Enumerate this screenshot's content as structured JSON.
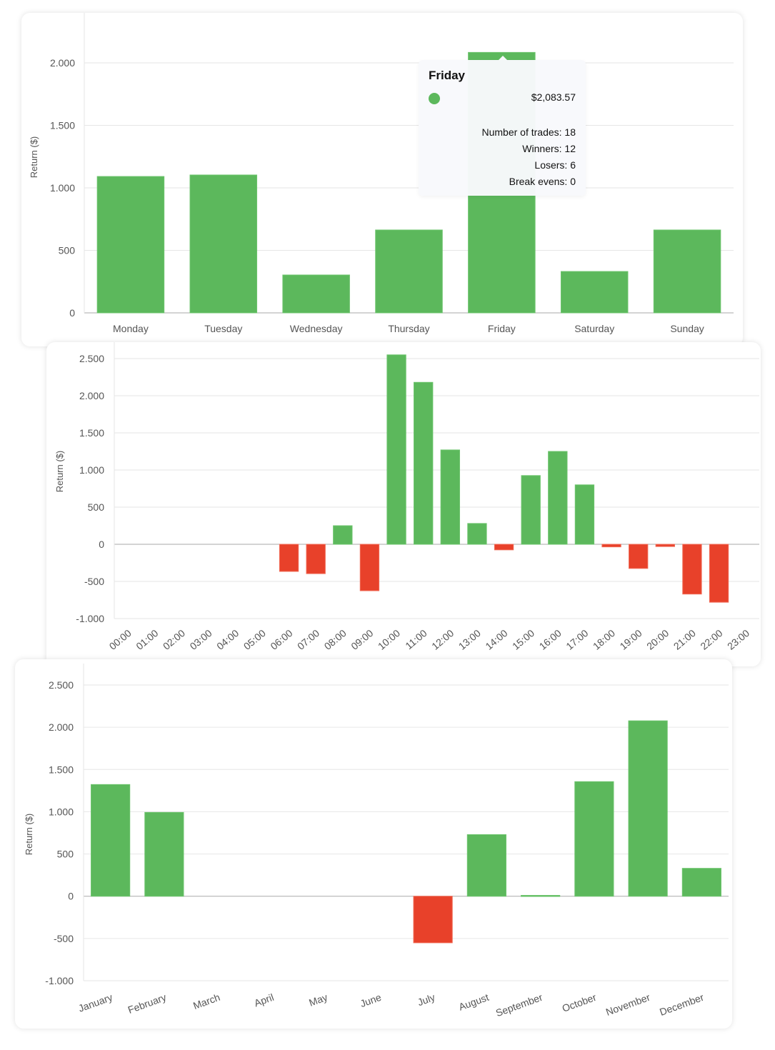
{
  "colors": {
    "positive": "#5cb85c",
    "negative": "#e8412a",
    "grid": "#e6e6e6",
    "axis": "#aaaaaa",
    "text": "#555555"
  },
  "chart_data": [
    {
      "type": "bar",
      "ylabel": "Return ($)",
      "categories": [
        "Monday",
        "Tuesday",
        "Wednesday",
        "Thursday",
        "Friday",
        "Saturday",
        "Sunday"
      ],
      "values": [
        1091,
        1103,
        303,
        663,
        2083.57,
        331,
        663
      ],
      "yticks": [
        0,
        500,
        1000,
        1500,
        2000
      ],
      "ytick_labels": [
        "0",
        "500",
        "1.000",
        "1.500",
        "2.000"
      ],
      "ylim": [
        0,
        2400
      ],
      "grid": true,
      "tooltip": {
        "title": "Friday",
        "value": "$2,083.57",
        "lines": [
          "Number of trades: 18",
          "Winners: 12",
          "Losers: 6",
          "Break evens: 0"
        ]
      }
    },
    {
      "type": "bar",
      "ylabel": "Return ($)",
      "categories": [
        "00:00",
        "01:00",
        "02:00",
        "03:00",
        "04:00",
        "05:00",
        "06:00",
        "07:00",
        "08:00",
        "09:00",
        "10:00",
        "11:00",
        "12:00",
        "13:00",
        "14:00",
        "15:00",
        "16:00",
        "17:00",
        "18:00",
        "19:00",
        "20:00",
        "21:00",
        "22:00",
        "23:00"
      ],
      "values": [
        0,
        0,
        0,
        0,
        0,
        0,
        -365,
        -395,
        250,
        -625,
        2550,
        2180,
        1270,
        280,
        -75,
        925,
        1250,
        800,
        -35,
        -325,
        -30,
        -670,
        -780,
        0
      ],
      "yticks": [
        -1000,
        -500,
        0,
        500,
        1000,
        1500,
        2000,
        2500
      ],
      "ytick_labels": [
        "-1.000",
        "-500",
        "0",
        "500",
        "1.000",
        "1.500",
        "2.000",
        "2.500"
      ],
      "ylim": [
        -1000,
        2500
      ],
      "grid": true
    },
    {
      "type": "bar",
      "ylabel": "Return ($)",
      "categories": [
        "January",
        "February",
        "March",
        "April",
        "May",
        "June",
        "July",
        "August",
        "September",
        "October",
        "November",
        "December"
      ],
      "values": [
        1322,
        992,
        0,
        0,
        0,
        0,
        -551,
        729,
        10,
        1356,
        2076,
        330
      ],
      "yticks": [
        -1000,
        -500,
        0,
        500,
        1000,
        1500,
        2000,
        2500
      ],
      "ytick_labels": [
        "-1.000",
        "-500",
        "0",
        "500",
        "1.000",
        "1.500",
        "2.000",
        "2.500"
      ],
      "ylim": [
        -1000,
        2500
      ],
      "grid": true
    }
  ]
}
